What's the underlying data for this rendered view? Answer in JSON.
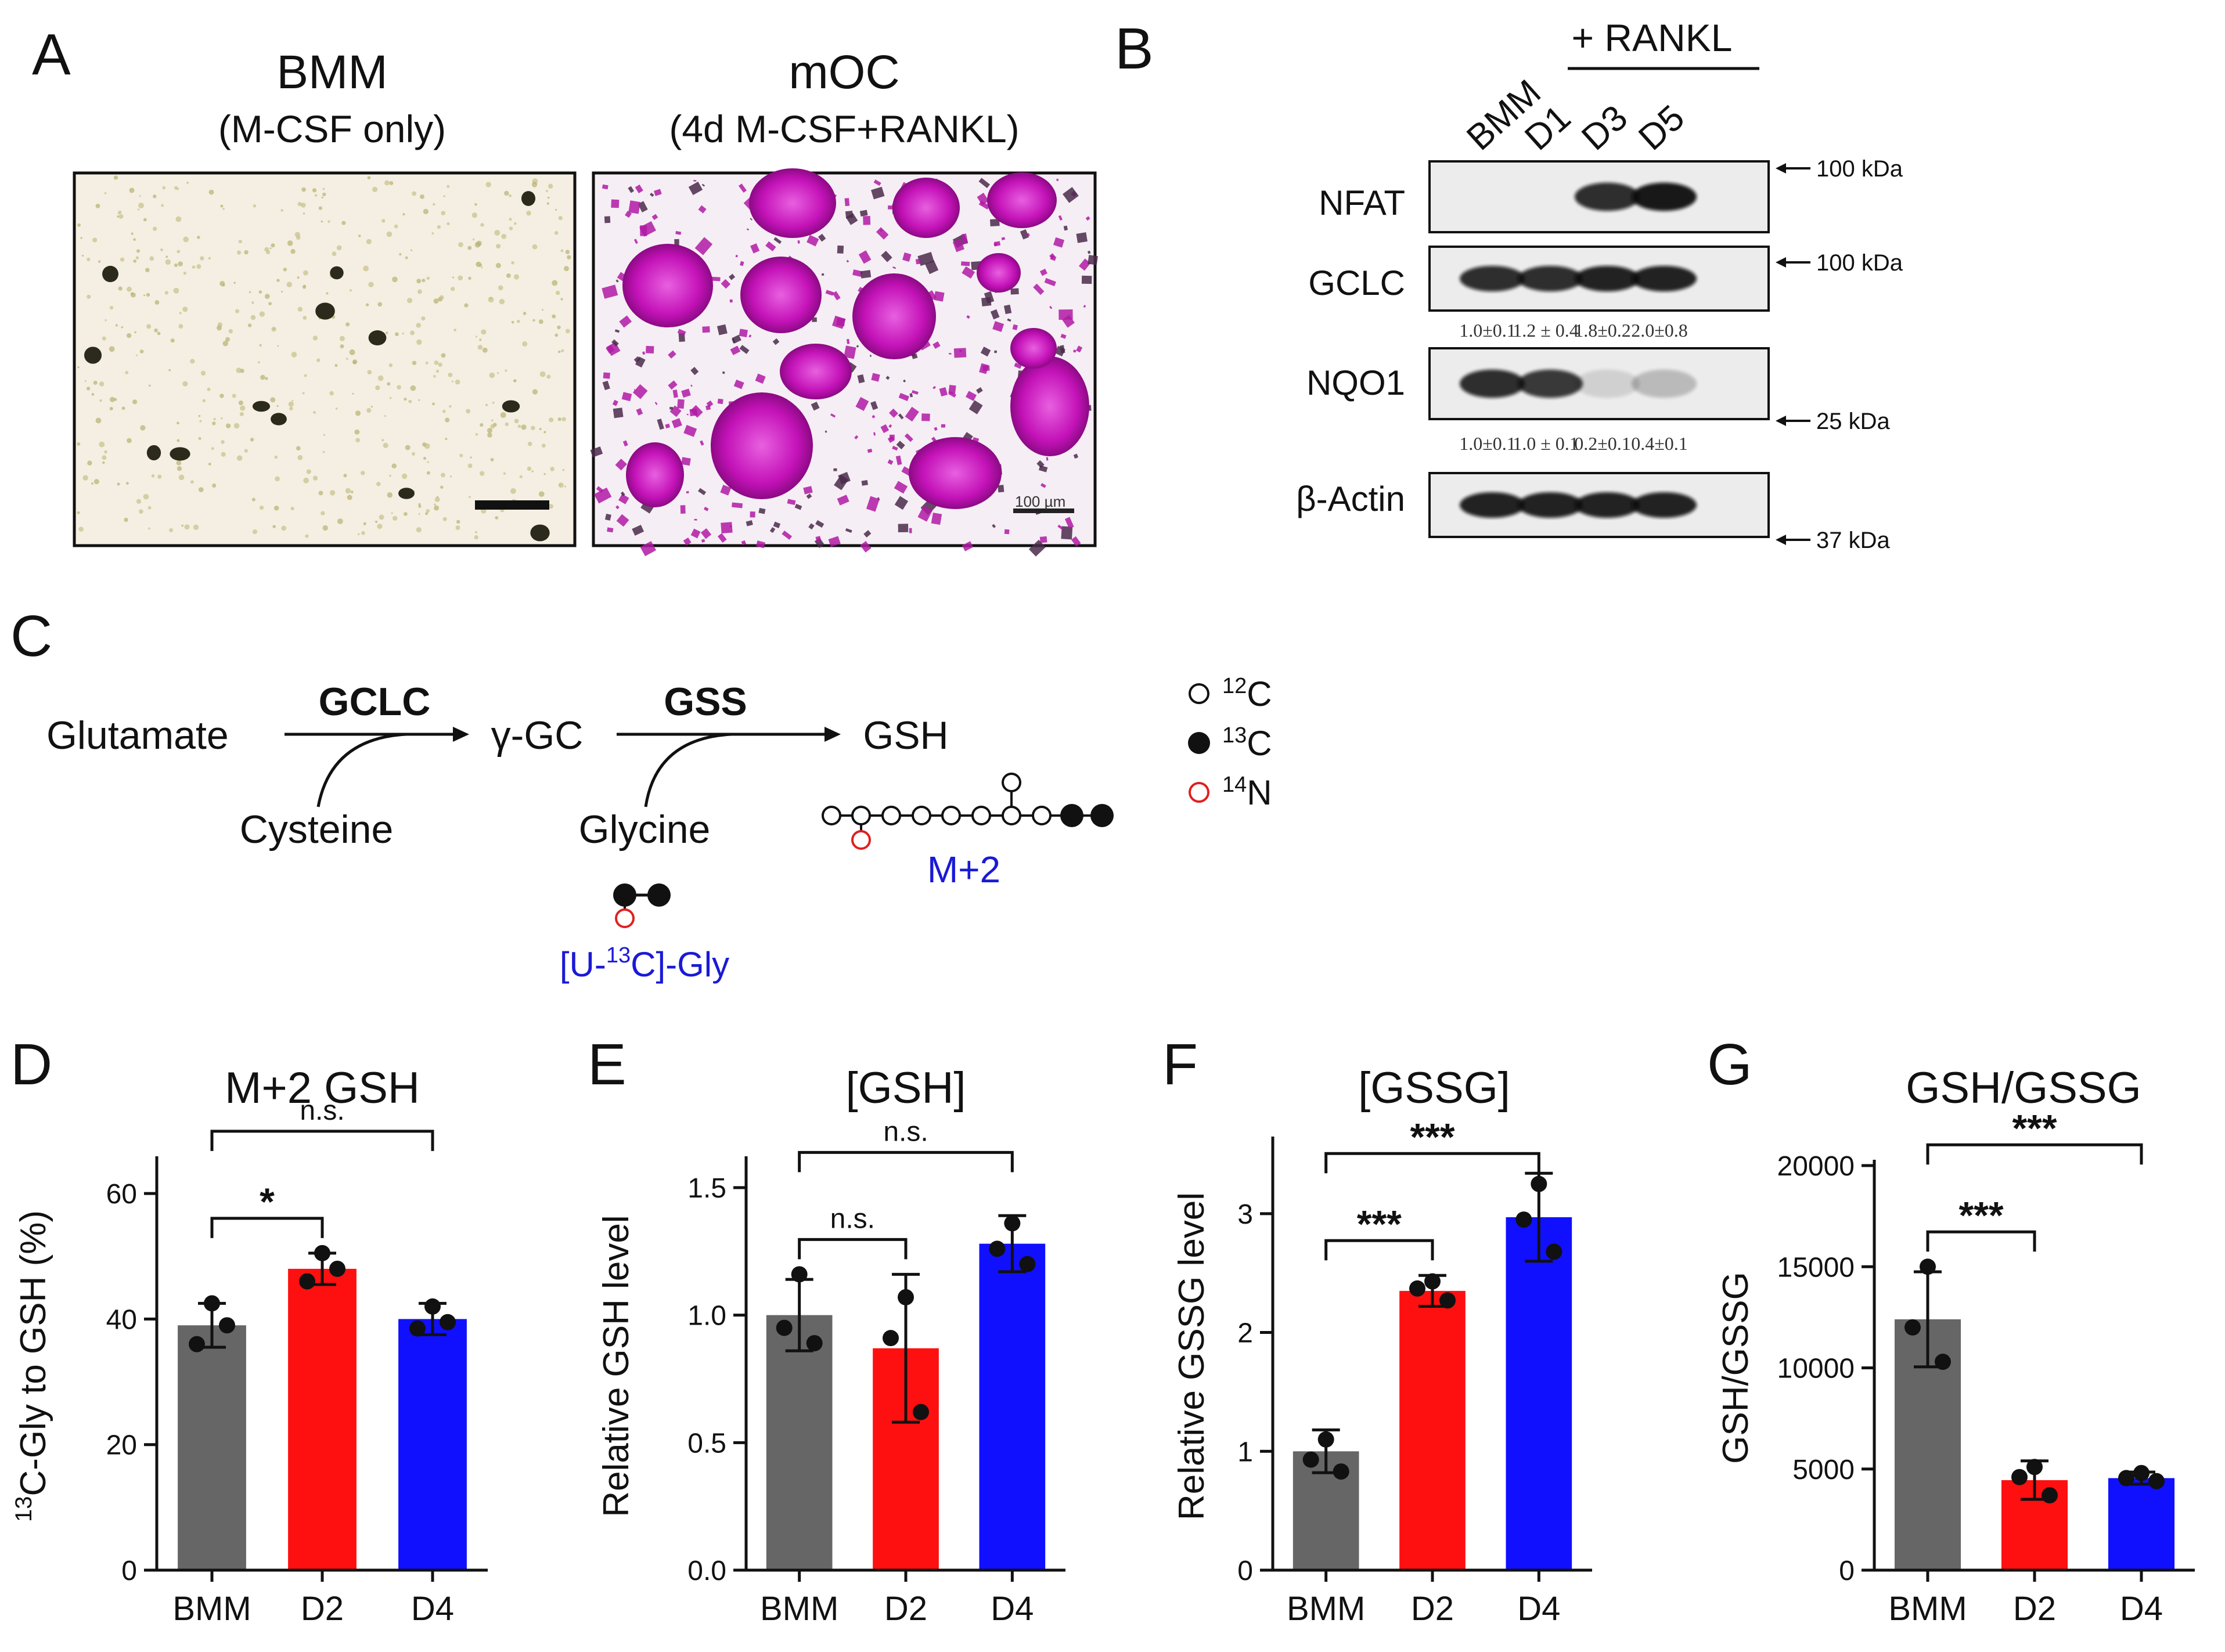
{
  "figure": {
    "panels": {
      "A": "A",
      "B": "B",
      "C": "C",
      "D": "D",
      "E": "E",
      "F": "F",
      "G": "G"
    },
    "panel_a": {
      "bmm_title": "BMM",
      "bmm_subtitle": "(M-CSF only)",
      "moc_title": "mOC",
      "moc_subtitle": "(4d M-CSF+RANKL)",
      "scale_label": "100 µm"
    },
    "panel_b": {
      "rankl_label": "+ RANKL",
      "lanes": [
        "BMM",
        "D1",
        "D3",
        "D5"
      ],
      "proteins": [
        "NFAT",
        "GCLC",
        "NQO1",
        "β-Actin"
      ],
      "markers": [
        "100 kDa",
        "100 kDa",
        "25 kDa",
        "37 kDa"
      ],
      "gclc_quant": [
        "1.0±0.1",
        "1.2 ± 0.4",
        "1.8±0.2",
        "2.0±0.8"
      ],
      "nqo1_quant": [
        "1.0±0.1",
        "1.0 ± 0.1",
        "0.2±0.1",
        "0.4±0.1"
      ],
      "band_intensity": {
        "NFAT": [
          0,
          0,
          0.85,
          0.95
        ],
        "GCLC": [
          0.85,
          0.85,
          0.9,
          0.9
        ],
        "NQO1": [
          0.85,
          0.8,
          0.12,
          0.22
        ],
        "β-Actin": [
          0.9,
          0.9,
          0.9,
          0.9
        ]
      }
    },
    "panel_c": {
      "glutamate": "Glutamate",
      "gclc": "GCLC",
      "gamma_gc": "γ-GC",
      "gss": "GSS",
      "gsh": "GSH",
      "cysteine": "Cysteine",
      "glycine": "Glycine",
      "m2": "M+2",
      "gly_tracer_pre": "[U-",
      "gly_tracer_sup": "13",
      "gly_tracer_post": "C]-Gly",
      "legend": [
        {
          "sup": "12",
          "text": "C"
        },
        {
          "sup": "13",
          "text": "C"
        },
        {
          "sup": "14",
          "text": "N"
        }
      ],
      "colors": {
        "blue": "#1a1ad6",
        "red": "#e02020"
      }
    }
  },
  "chart_data": [
    {
      "type": "bar",
      "title": "M+2 GSH",
      "ylabel_sup": "13",
      "ylabel": "C-Gly to GSH (%)",
      "categories": [
        "BMM",
        "D2",
        "D4"
      ],
      "values": [
        39,
        48,
        40
      ],
      "errors": [
        3.5,
        2.5,
        2.5
      ],
      "points": [
        [
          42.5,
          36,
          39
        ],
        [
          50.5,
          46,
          48
        ],
        [
          42,
          38.5,
          39.5
        ]
      ],
      "ylim": [
        0,
        65
      ],
      "yticks": [
        0,
        20,
        40,
        60
      ],
      "colors": [
        "#666666",
        "#ff1010",
        "#1010ff"
      ],
      "comparisons": [
        {
          "from": 0,
          "to": 2,
          "label": "n.s.",
          "level": 0
        },
        {
          "from": 0,
          "to": 1,
          "label": "*",
          "level": 1
        }
      ]
    },
    {
      "type": "bar",
      "title": "[GSH]",
      "ylabel": "Relative GSH level",
      "categories": [
        "BMM",
        "D2",
        "D4"
      ],
      "values": [
        1.0,
        0.87,
        1.28
      ],
      "errors": [
        0.14,
        0.29,
        0.11
      ],
      "points": [
        [
          1.16,
          0.95,
          0.89
        ],
        [
          1.07,
          0.91,
          0.62
        ],
        [
          1.36,
          1.26,
          1.2
        ]
      ],
      "ylim": [
        0,
        1.6
      ],
      "yticks": [
        0.0,
        0.5,
        1.0,
        1.5
      ],
      "ytick_labels": [
        "0.0",
        "0.5",
        "1.0",
        "1.5"
      ],
      "colors": [
        "#666666",
        "#ff1010",
        "#1010ff"
      ],
      "comparisons": [
        {
          "from": 0,
          "to": 2,
          "label": "n.s.",
          "level": 0
        },
        {
          "from": 0,
          "to": 1,
          "label": "n.s.",
          "level": 1
        }
      ]
    },
    {
      "type": "bar",
      "title": "[GSSG]",
      "ylabel": "Relative GSSG level",
      "categories": [
        "BMM",
        "D2",
        "D4"
      ],
      "values": [
        1.0,
        2.35,
        2.97
      ],
      "errors": [
        0.18,
        0.13,
        0.37
      ],
      "points": [
        [
          1.1,
          0.93,
          0.83
        ],
        [
          2.43,
          2.37,
          2.27
        ],
        [
          3.25,
          2.95,
          2.68
        ]
      ],
      "ylim": [
        0,
        3.6
      ],
      "yticks": [
        0,
        1,
        2,
        3
      ],
      "colors": [
        "#666666",
        "#ff1010",
        "#1010ff"
      ],
      "comparisons": [
        {
          "from": 0,
          "to": 2,
          "label": "***",
          "level": 0
        },
        {
          "from": 0,
          "to": 1,
          "label": "***",
          "level": 1
        }
      ]
    },
    {
      "type": "bar",
      "title": "GSH/GSSG",
      "ylabel": "GSH/GSSG",
      "categories": [
        "BMM",
        "D2",
        "D4"
      ],
      "values": [
        12400,
        4450,
        4550
      ],
      "errors": [
        2350,
        950,
        300
      ],
      "points": [
        [
          15000,
          12000,
          10300
        ],
        [
          5100,
          4600,
          3700
        ],
        [
          4800,
          4550,
          4400
        ]
      ],
      "ylim": [
        0,
        20000
      ],
      "yticks": [
        0,
        5000,
        10000,
        15000,
        20000
      ],
      "colors": [
        "#666666",
        "#ff1010",
        "#1010ff"
      ],
      "comparisons": [
        {
          "from": 0,
          "to": 2,
          "label": "***",
          "level": 0
        },
        {
          "from": 0,
          "to": 1,
          "label": "***",
          "level": 1
        }
      ]
    }
  ]
}
